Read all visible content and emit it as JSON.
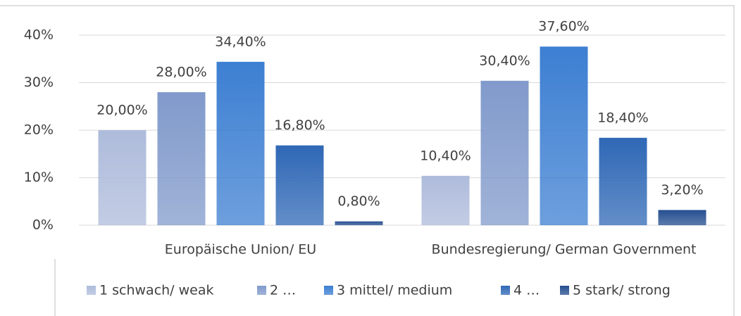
{
  "chart_data": {
    "type": "bar",
    "categories": [
      "Europäische Union/ EU",
      "Bundesregierung/ German Government"
    ],
    "series": [
      {
        "name": "1 schwach/ weak",
        "color": "#aebbdb",
        "values": [
          20,
          10.4
        ],
        "value_labels": [
          "20,00%",
          "10,40%"
        ]
      },
      {
        "name": "2 …",
        "color": "#819acb",
        "values": [
          28,
          30.4
        ],
        "value_labels": [
          "28,00%",
          "30,40%"
        ]
      },
      {
        "name": "3 mittel/ medium",
        "color": "#3d7fd2",
        "values": [
          34.4,
          37.6
        ],
        "value_labels": [
          "34,40%",
          "37,60%"
        ]
      },
      {
        "name": "4 …",
        "color": "#2f68b6",
        "values": [
          16.8,
          18.4
        ],
        "value_labels": [
          "16,80%",
          "18,40%"
        ]
      },
      {
        "name": "5 stark/ strong",
        "color": "#264f90",
        "values": [
          0.8,
          3.2
        ],
        "value_labels": [
          "0,80%",
          "3,20%"
        ]
      }
    ],
    "ylim": [
      0,
      40
    ],
    "yticks": [
      {
        "value": 0,
        "label": "0%"
      },
      {
        "value": 10,
        "label": "10%"
      },
      {
        "value": 20,
        "label": "20%"
      },
      {
        "value": 30,
        "label": "30%"
      },
      {
        "value": 40,
        "label": "40%"
      }
    ],
    "grid": true,
    "legend": "bottom"
  }
}
